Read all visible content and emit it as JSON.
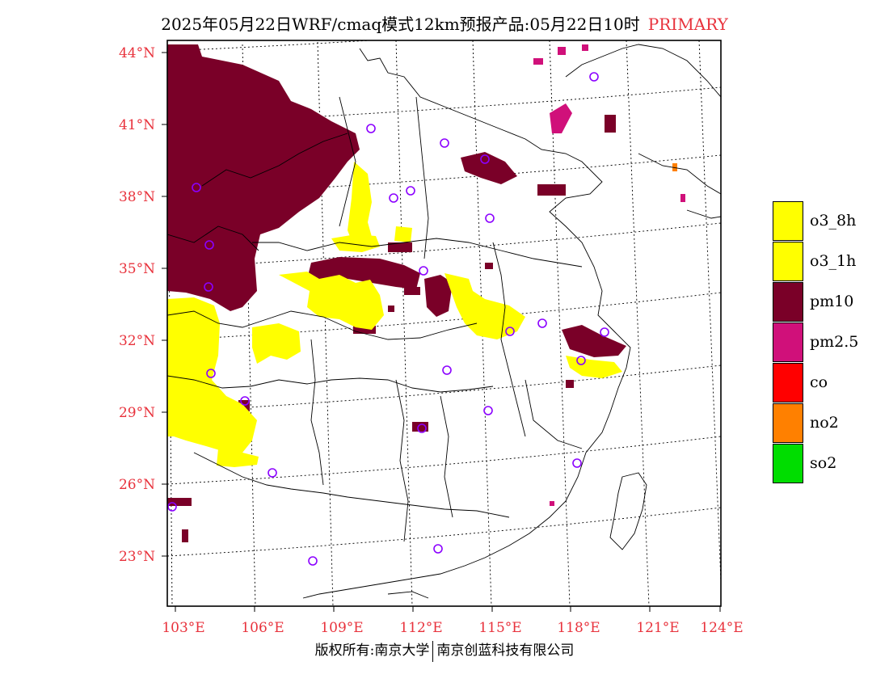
{
  "title": {
    "main": "2025年05月22日WRF/cmaq模式12km预报产品:05月22日10时",
    "tag": "PRIMARY"
  },
  "map": {
    "lat_labels": [
      "44°N",
      "41°N",
      "38°N",
      "35°N",
      "32°N",
      "29°N",
      "26°N",
      "23°N"
    ],
    "lon_labels": [
      "103°E",
      "106°E",
      "109°E",
      "112°E",
      "115°E",
      "118°E",
      "121°E",
      "124°E"
    ]
  },
  "legend": {
    "items": [
      {
        "label": "o3_8h",
        "color": "#ffff00"
      },
      {
        "label": "o3_1h",
        "color": "#ffff00"
      },
      {
        "label": "pm10",
        "color": "#7a0028"
      },
      {
        "label": "pm2.5",
        "color": "#d0107a"
      },
      {
        "label": "co",
        "color": "#ff0000"
      },
      {
        "label": "no2",
        "color": "#ff8000"
      },
      {
        "label": "so2",
        "color": "#00dd00"
      }
    ]
  },
  "footer": {
    "left": "版权所有:南京大学",
    "right": "南京创蓝科技有限公司"
  },
  "colors": {
    "label_red": "#e8323c",
    "pm10": "#7a0028",
    "pm25": "#d0107a",
    "o3": "#ffff00",
    "station_marker": "#8b00ff"
  }
}
